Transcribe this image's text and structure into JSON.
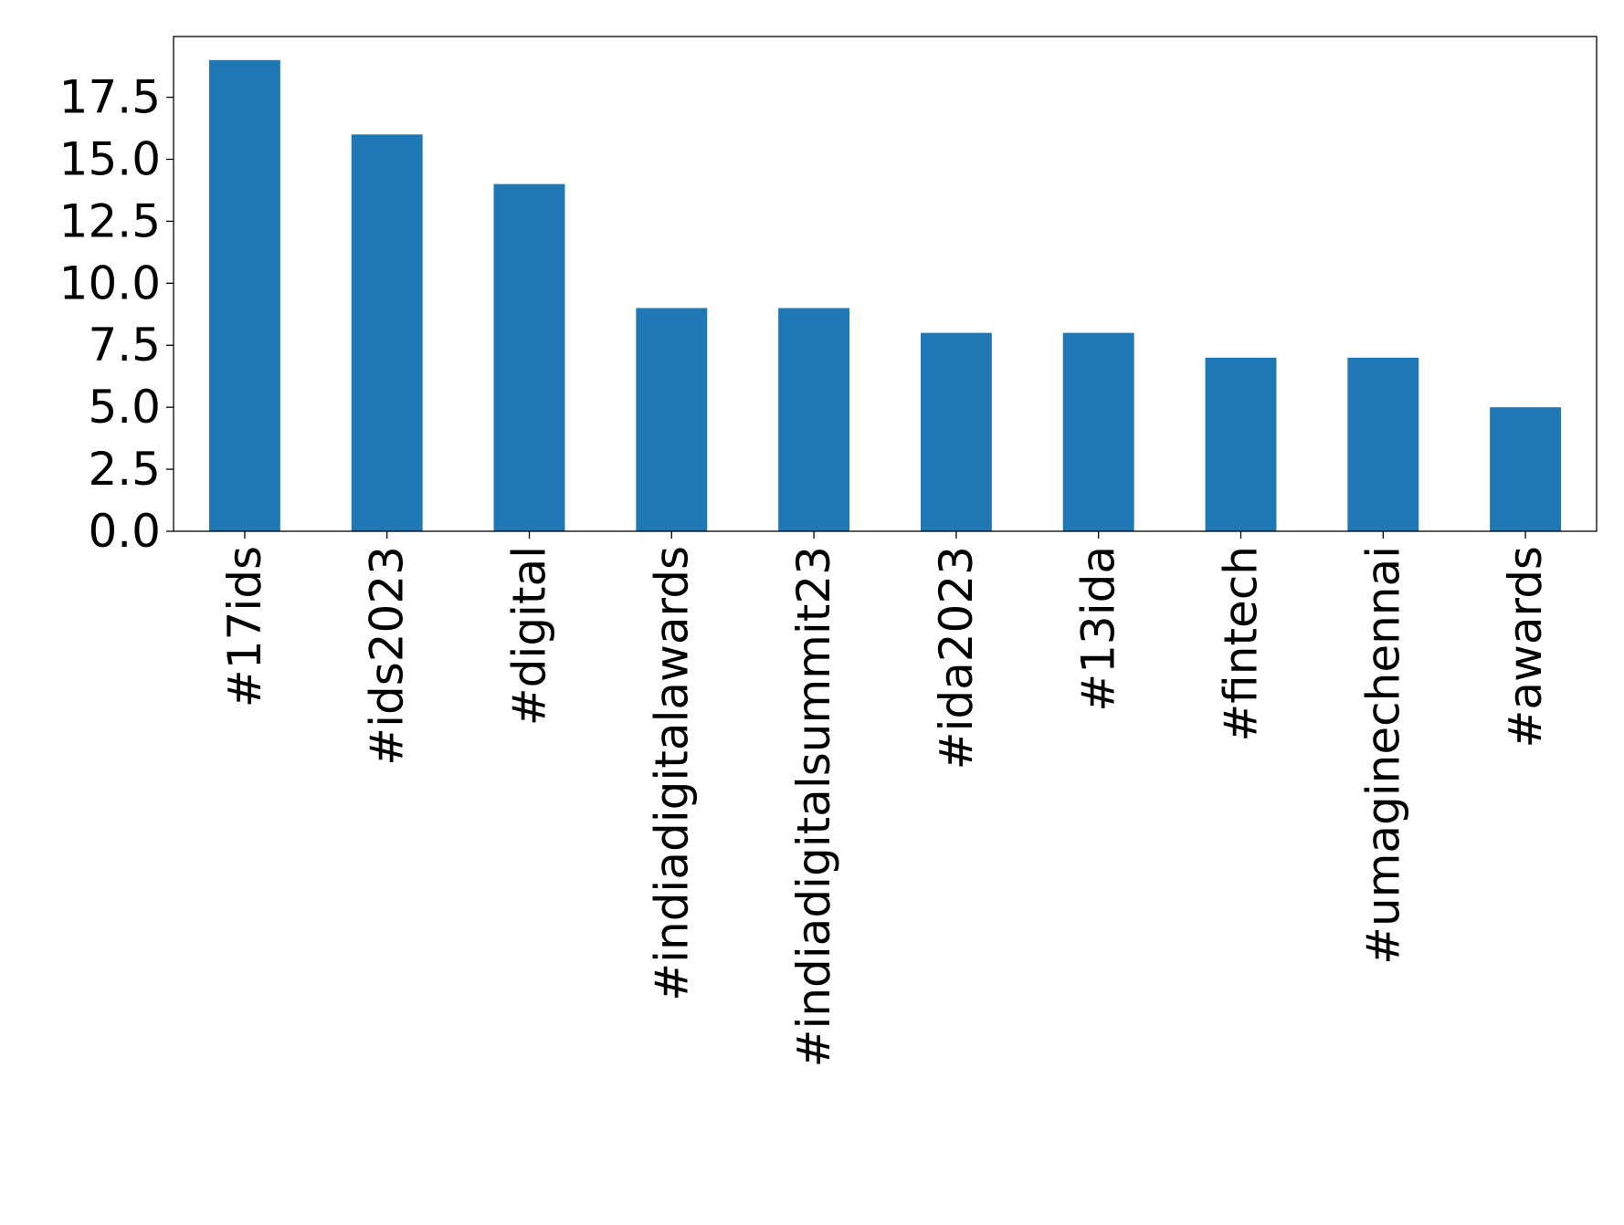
{
  "chart_data": {
    "type": "bar",
    "categories": [
      "#17ids",
      "#ids2023",
      "#digital",
      "#indiadigitalawards",
      "#indiadigitalsummit23",
      "#ida2023",
      "#13ida",
      "#fintech",
      "#umaginechennai",
      "#awards"
    ],
    "values": [
      19,
      16,
      14,
      9,
      9,
      8,
      8,
      7,
      7,
      5
    ],
    "title": "",
    "xlabel": "",
    "ylabel": "",
    "ylim": [
      0,
      19.95
    ],
    "yticks": [
      "0.0",
      "2.5",
      "5.0",
      "7.5",
      "10.0",
      "12.5",
      "15.0",
      "17.5"
    ],
    "bar_color": "#1f77b4",
    "grid": false,
    "legend": "none",
    "x_tick_rotation": "vertical"
  }
}
